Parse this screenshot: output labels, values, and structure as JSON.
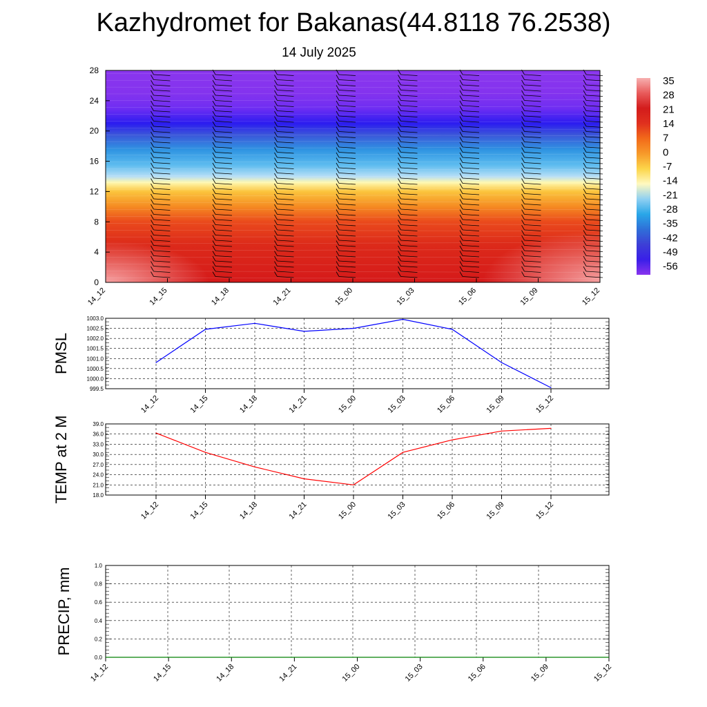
{
  "title": "Kazhydromet for Bakanas(44.8118 76.2538)",
  "subtitle": "14 July 2025",
  "chart_data": [
    {
      "type": "heatmap",
      "name": "vertical cross-section",
      "ylabel": "",
      "ylim": [
        0,
        28
      ],
      "y_ticks": [
        "0",
        "4",
        "8",
        "12",
        "16",
        "20",
        "24",
        "28"
      ],
      "y_tick_values": [
        0,
        4,
        8,
        12,
        16,
        20,
        24,
        28
      ],
      "x_ticks": [
        "14_12",
        "14_15",
        "14_18",
        "14_21",
        "15_00",
        "15_03",
        "15_06",
        "15_09",
        "15_12"
      ],
      "colorbar": {
        "labels": [
          "35",
          "28",
          "21",
          "14",
          "7",
          "0",
          "-7",
          "-14",
          "-21",
          "-28",
          "-35",
          "-42",
          "-49",
          "-56"
        ],
        "colors": [
          "#f7b0b0",
          "#e85a5a",
          "#d31c1c",
          "#e0301e",
          "#f26a1a",
          "#f79a2a",
          "#fcd54a",
          "#fff9c0",
          "#8fd0f2",
          "#29a6e8",
          "#2f6fd8",
          "#3d3fd6",
          "#3a1fe8",
          "#8833ee"
        ]
      },
      "color_bands": [
        {
          "y": 0,
          "color": "#d51a1a"
        },
        {
          "y": 2,
          "color": "#d8201a"
        },
        {
          "y": 5,
          "color": "#dc2a1a"
        },
        {
          "y": 8,
          "color": "#ea4a1c"
        },
        {
          "y": 10,
          "color": "#f58a22"
        },
        {
          "y": 12,
          "color": "#fbc43d"
        },
        {
          "y": 13.2,
          "color": "#fff8b0"
        },
        {
          "y": 14,
          "color": "#b6def6"
        },
        {
          "y": 15.5,
          "color": "#5dbcef"
        },
        {
          "y": 17.5,
          "color": "#2f94e2"
        },
        {
          "y": 19.5,
          "color": "#3b56d9"
        },
        {
          "y": 21,
          "color": "#2b1cf0"
        },
        {
          "y": 23,
          "color": "#6f2ef2"
        },
        {
          "y": 25,
          "color": "#8433ee"
        },
        {
          "y": 28,
          "color": "#8a36ee"
        }
      ],
      "barb_columns": [
        "14_15",
        "14_18",
        "14_21",
        "15_00",
        "15_03",
        "15_06",
        "15_09",
        "15_12"
      ]
    },
    {
      "type": "line",
      "name": "pmsl",
      "ylabel": "PMSL",
      "ylim": [
        999.5,
        1003.0
      ],
      "y_ticks": [
        "1003.0",
        "1002.5",
        "1002.0",
        "1001.5",
        "1001.0",
        "1000.5",
        "1000.0",
        "999.5"
      ],
      "y_tick_values": [
        1003.0,
        1002.5,
        1002.0,
        1001.5,
        1001.0,
        1000.5,
        1000.0,
        999.5
      ],
      "x_ticks": [
        "14_12",
        "14_15",
        "14_18",
        "14_21",
        "15_00",
        "15_03",
        "15_06",
        "15_09",
        "15_12"
      ],
      "values": [
        1000.8,
        1002.45,
        1002.75,
        1002.35,
        1002.5,
        1002.95,
        1002.45,
        1000.8,
        999.55
      ],
      "color": "#0000ff"
    },
    {
      "type": "line",
      "name": "temp2m",
      "ylabel": "TEMP at 2 M",
      "ylim": [
        18.0,
        39.0
      ],
      "y_ticks": [
        "39.0",
        "36.0",
        "33.0",
        "30.0",
        "27.0",
        "24.0",
        "21.0",
        "18.0"
      ],
      "y_tick_values": [
        39.0,
        36.0,
        33.0,
        30.0,
        27.0,
        24.0,
        21.0,
        18.0
      ],
      "x_ticks": [
        "14_12",
        "14_15",
        "14_18",
        "14_21",
        "15_00",
        "15_03",
        "15_06",
        "15_09",
        "15_12"
      ],
      "values": [
        36.3,
        30.6,
        26.3,
        22.8,
        21.0,
        30.6,
        34.3,
        36.9,
        37.7
      ],
      "color": "#ff0000"
    },
    {
      "type": "line",
      "name": "precip",
      "ylabel": "PRECIP, mm",
      "ylim": [
        0.0,
        1.0
      ],
      "y_ticks": [
        "1.0",
        "0.8",
        "0.6",
        "0.4",
        "0.2",
        "0.0"
      ],
      "y_tick_values": [
        1.0,
        0.8,
        0.6,
        0.4,
        0.2,
        0.0
      ],
      "x_ticks": [
        "14_12",
        "14_15",
        "14_18",
        "14_21",
        "15_00",
        "15_03",
        "15_06",
        "15_09",
        "15_12"
      ],
      "values": [
        0,
        0,
        0,
        0,
        0,
        0,
        0,
        0,
        0
      ],
      "color": "#008000"
    }
  ]
}
